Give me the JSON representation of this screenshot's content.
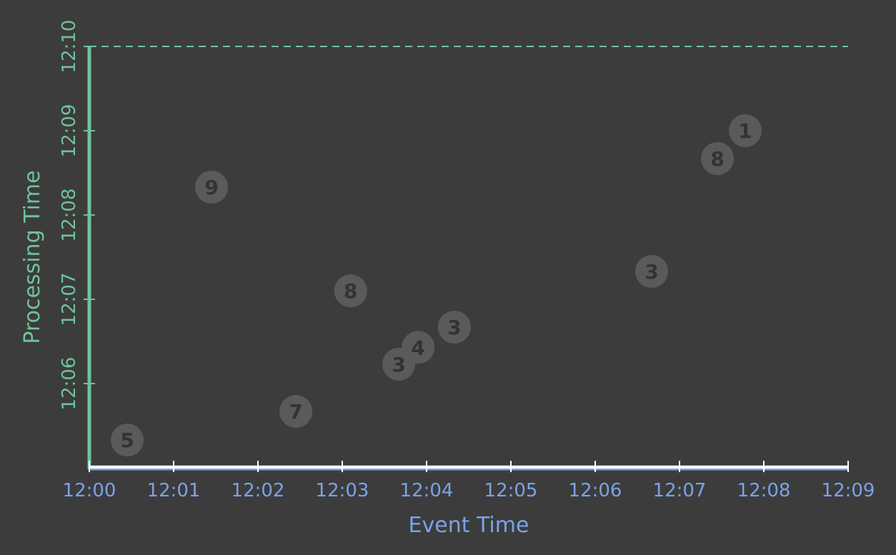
{
  "chart_data": {
    "type": "scatter",
    "xlabel": "Event Time",
    "ylabel": "Processing Time",
    "x_ticks": [
      "12:00",
      "12:01",
      "12:02",
      "12:03",
      "12:04",
      "12:05",
      "12:06",
      "12:07",
      "12:08",
      "12:09"
    ],
    "y_ticks": [
      "12:06",
      "12:07",
      "12:08",
      "12:09",
      "12:10"
    ],
    "y_tick_values": [
      1,
      2,
      3,
      4,
      5
    ],
    "xlim": [
      0,
      9
    ],
    "ylim": [
      0,
      5
    ],
    "watermark_line_y": 5,
    "points": [
      {
        "x": 0.45,
        "y": 0.33,
        "label": "5"
      },
      {
        "x": 2.45,
        "y": 0.67,
        "label": "7"
      },
      {
        "x": 1.45,
        "y": 3.33,
        "label": "9"
      },
      {
        "x": 3.1,
        "y": 2.1,
        "label": "8"
      },
      {
        "x": 3.67,
        "y": 1.23,
        "label": "3"
      },
      {
        "x": 3.9,
        "y": 1.43,
        "label": "4"
      },
      {
        "x": 4.33,
        "y": 1.67,
        "label": "3"
      },
      {
        "x": 6.67,
        "y": 2.33,
        "label": "3"
      },
      {
        "x": 7.45,
        "y": 3.67,
        "label": "8"
      },
      {
        "x": 7.78,
        "y": 4.0,
        "label": "1"
      }
    ],
    "colors": {
      "x_axis": "#ffffff",
      "x_text": "#7aa2e8",
      "y_axis": "#6fc39a",
      "point": "#5a5a5a",
      "point_text": "#333333"
    }
  }
}
